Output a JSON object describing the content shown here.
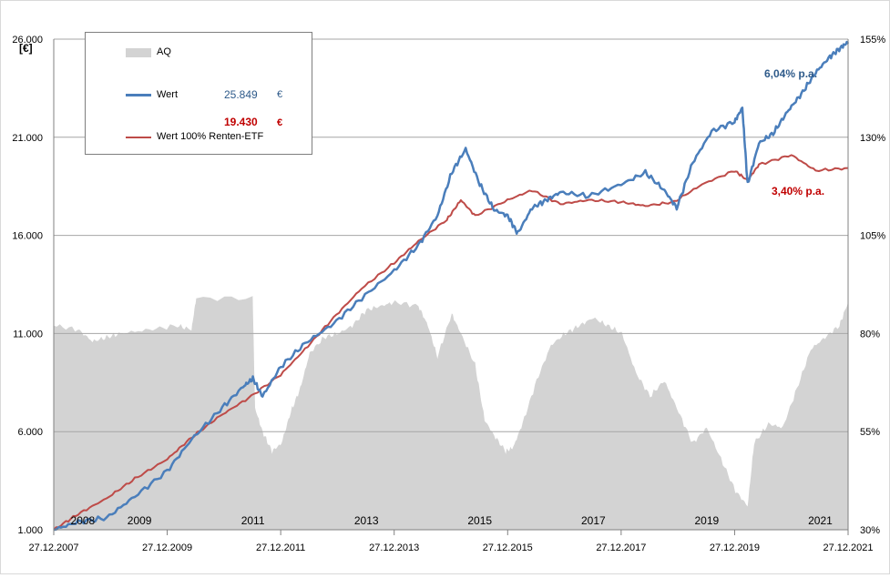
{
  "chart_data": {
    "type": "area",
    "left_axis": {
      "unit": "[€]",
      "ticks": [
        "1.000",
        "6.000",
        "11.000",
        "16.000",
        "21.000",
        "26.000"
      ],
      "range": [
        1000,
        26000
      ]
    },
    "right_axis": {
      "ticks": [
        "30%",
        "55%",
        "80%",
        "105%",
        "130%",
        "155%"
      ],
      "range": [
        30,
        155
      ]
    },
    "x_axis": {
      "range": [
        "2007-12-27",
        "2021-12-27"
      ],
      "date_ticks": [
        "27.12.2007",
        "27.12.2009",
        "27.12.2011",
        "27.12.2013",
        "27.12.2015",
        "27.12.2017",
        "27.12.2019",
        "27.12.2021"
      ],
      "year_labels": [
        "2008",
        "2009",
        "2011",
        "2013",
        "2015",
        "2017",
        "2019",
        "2021"
      ]
    },
    "grid": true,
    "legend": {
      "placement": "top-left",
      "aq_label": "AQ",
      "wert_label": "Wert",
      "wert_value": "25.849",
      "wert_currency": "€",
      "renten_label": "Wert 100% Renten-ETF",
      "renten_value": "19.430",
      "renten_currency": "€"
    },
    "annotations": {
      "wert_return": "6,04% p.a.",
      "renten_return": "3,40% p.a."
    },
    "colors": {
      "aq": "#d3d3d3",
      "wert": "#4a7ebb",
      "renten": "#be4b48",
      "grid": "#a6a6a6"
    },
    "series": [
      {
        "name": "AQ",
        "axis": "right",
        "kind": "area",
        "points": [
          [
            "2007-12-27",
            82
          ],
          [
            "2008-06-01",
            81
          ],
          [
            "2008-09-01",
            78
          ],
          [
            "2008-12-01",
            79
          ],
          [
            "2009-03-01",
            80
          ],
          [
            "2009-09-01",
            81
          ],
          [
            "2010-03-01",
            82
          ],
          [
            "2010-06-01",
            81
          ],
          [
            "2010-07-01",
            89
          ],
          [
            "2011-06-30",
            89
          ],
          [
            "2011-07-15",
            61
          ],
          [
            "2011-09-01",
            55
          ],
          [
            "2011-11-01",
            50
          ],
          [
            "2012-01-01",
            52
          ],
          [
            "2012-03-01",
            60
          ],
          [
            "2012-05-01",
            66
          ],
          [
            "2012-07-01",
            75
          ],
          [
            "2012-10-01",
            79
          ],
          [
            "2013-01-01",
            80
          ],
          [
            "2013-04-01",
            82
          ],
          [
            "2013-07-01",
            86
          ],
          [
            "2013-10-01",
            87
          ],
          [
            "2014-01-01",
            88
          ],
          [
            "2014-06-01",
            87
          ],
          [
            "2014-08-01",
            82
          ],
          [
            "2014-10-01",
            74
          ],
          [
            "2015-01-01",
            85
          ],
          [
            "2015-03-01",
            80
          ],
          [
            "2015-06-01",
            72
          ],
          [
            "2015-08-01",
            58
          ],
          [
            "2015-10-01",
            54
          ],
          [
            "2015-12-15",
            50
          ],
          [
            "2016-02-01",
            51
          ],
          [
            "2016-04-01",
            57
          ],
          [
            "2016-07-01",
            68
          ],
          [
            "2016-10-01",
            77
          ],
          [
            "2017-01-01",
            80
          ],
          [
            "2017-04-01",
            82
          ],
          [
            "2017-07-01",
            84
          ],
          [
            "2017-10-01",
            82
          ],
          [
            "2018-01-01",
            80
          ],
          [
            "2018-04-01",
            70
          ],
          [
            "2018-07-01",
            64
          ],
          [
            "2018-10-01",
            68
          ],
          [
            "2019-01-01",
            60
          ],
          [
            "2019-04-01",
            52
          ],
          [
            "2019-07-01",
            56
          ],
          [
            "2019-10-01",
            48
          ],
          [
            "2020-01-01",
            40
          ],
          [
            "2020-03-20",
            36
          ],
          [
            "2020-05-01",
            52
          ],
          [
            "2020-08-01",
            57
          ],
          [
            "2020-11-01",
            56
          ],
          [
            "2021-02-01",
            66
          ],
          [
            "2021-05-01",
            76
          ],
          [
            "2021-08-01",
            79
          ],
          [
            "2021-11-01",
            82
          ],
          [
            "2021-12-27",
            88
          ]
        ]
      },
      {
        "name": "Wert",
        "axis": "left",
        "kind": "line",
        "points": [
          [
            "2007-12-27",
            1000
          ],
          [
            "2008-06-01",
            1400
          ],
          [
            "2008-12-01",
            1600
          ],
          [
            "2009-06-01",
            2700
          ],
          [
            "2009-12-27",
            4000
          ],
          [
            "2010-06-01",
            5600
          ],
          [
            "2010-12-01",
            7100
          ],
          [
            "2011-05-01",
            8300
          ],
          [
            "2011-07-01",
            8700
          ],
          [
            "2011-09-01",
            7800
          ],
          [
            "2011-12-27",
            9300
          ],
          [
            "2012-06-01",
            10500
          ],
          [
            "2012-12-01",
            11500
          ],
          [
            "2013-06-01",
            12800
          ],
          [
            "2013-12-27",
            14200
          ],
          [
            "2014-06-01",
            15500
          ],
          [
            "2014-10-01",
            17000
          ],
          [
            "2015-01-01",
            19200
          ],
          [
            "2015-04-01",
            20400
          ],
          [
            "2015-07-01",
            18600
          ],
          [
            "2015-10-01",
            17300
          ],
          [
            "2015-12-27",
            17000
          ],
          [
            "2016-03-01",
            16100
          ],
          [
            "2016-06-01",
            17400
          ],
          [
            "2016-09-01",
            17800
          ],
          [
            "2016-12-01",
            18200
          ],
          [
            "2017-06-01",
            18000
          ],
          [
            "2017-12-27",
            18600
          ],
          [
            "2018-06-01",
            19200
          ],
          [
            "2018-10-01",
            18300
          ],
          [
            "2018-12-20",
            17400
          ],
          [
            "2019-04-01",
            19700
          ],
          [
            "2019-08-01",
            21300
          ],
          [
            "2019-12-27",
            21800
          ],
          [
            "2020-02-15",
            22500
          ],
          [
            "2020-03-20",
            18600
          ],
          [
            "2020-06-01",
            20700
          ],
          [
            "2020-09-01",
            21200
          ],
          [
            "2020-12-01",
            22300
          ],
          [
            "2021-03-01",
            23200
          ],
          [
            "2021-06-01",
            24300
          ],
          [
            "2021-09-01",
            25100
          ],
          [
            "2021-11-15",
            25600
          ],
          [
            "2021-12-27",
            25849
          ]
        ]
      },
      {
        "name": "Wert 100% Renten-ETF",
        "axis": "left",
        "kind": "line",
        "points": [
          [
            "2007-12-27",
            1000
          ],
          [
            "2008-06-01",
            1800
          ],
          [
            "2008-12-01",
            2600
          ],
          [
            "2009-06-01",
            3600
          ],
          [
            "2009-12-27",
            4600
          ],
          [
            "2010-06-01",
            5700
          ],
          [
            "2010-12-01",
            6800
          ],
          [
            "2011-06-01",
            7700
          ],
          [
            "2011-12-27",
            8900
          ],
          [
            "2012-06-01",
            10200
          ],
          [
            "2012-12-01",
            11800
          ],
          [
            "2013-06-01",
            13300
          ],
          [
            "2013-12-27",
            14600
          ],
          [
            "2014-06-01",
            15700
          ],
          [
            "2014-12-01",
            16800
          ],
          [
            "2015-03-01",
            17800
          ],
          [
            "2015-06-01",
            17000
          ],
          [
            "2015-12-27",
            17800
          ],
          [
            "2016-06-01",
            18300
          ],
          [
            "2016-12-01",
            17600
          ],
          [
            "2017-06-01",
            17800
          ],
          [
            "2017-12-27",
            17700
          ],
          [
            "2018-06-01",
            17500
          ],
          [
            "2018-12-01",
            17700
          ],
          [
            "2019-06-01",
            18600
          ],
          [
            "2019-12-27",
            19300
          ],
          [
            "2020-03-20",
            18800
          ],
          [
            "2020-06-01",
            19600
          ],
          [
            "2020-12-27",
            20100
          ],
          [
            "2021-06-01",
            19300
          ],
          [
            "2021-12-27",
            19430
          ]
        ]
      }
    ]
  }
}
